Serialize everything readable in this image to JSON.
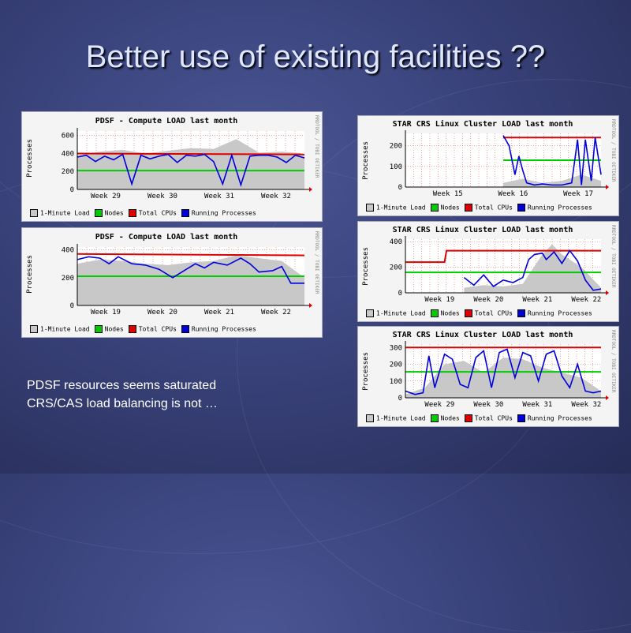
{
  "slide": {
    "title": "Better use of existing facilities ??",
    "caption": [
      "PDSF resources seems saturated",
      "CRS/CAS load balancing is not …"
    ]
  },
  "legend_labels": [
    "1-Minute Load",
    "Nodes",
    "Total CPUs",
    "Running Processes"
  ],
  "colors": {
    "load": "#c8c8c8",
    "nodes": "#00cc00",
    "cpus": "#dd0000",
    "procs": "#0000dd"
  },
  "side_label": "RRDTOOL / TOBI OETIKER",
  "chart_data": [
    {
      "id": "pdsf-a",
      "type": "line",
      "title": "PDSF - Compute LOAD last month",
      "ylabel": "Processes",
      "ylim": [
        0,
        650
      ],
      "yticks": [
        "0",
        "200",
        "400",
        "600"
      ],
      "ytick_values": [
        0,
        200,
        400,
        600
      ],
      "xticks": [
        "Week 29",
        "Week 30",
        "Week 31",
        "Week 32"
      ],
      "xlim": [
        0,
        1
      ],
      "series": [
        {
          "name": "Nodes",
          "x": [
            0,
            1
          ],
          "y": [
            210,
            210
          ]
        },
        {
          "name": "Total CPUs",
          "x": [
            0,
            1
          ],
          "y": [
            400,
            390
          ]
        },
        {
          "name": "Running Processes",
          "x": [
            0,
            0.04,
            0.08,
            0.12,
            0.16,
            0.2,
            0.24,
            0.28,
            0.32,
            0.36,
            0.4,
            0.44,
            0.48,
            0.52,
            0.56,
            0.6,
            0.64,
            0.68,
            0.72,
            0.76,
            0.8,
            0.84,
            0.88,
            0.92,
            0.96,
            1
          ],
          "y": [
            360,
            380,
            310,
            370,
            330,
            390,
            60,
            380,
            340,
            370,
            390,
            300,
            380,
            370,
            390,
            310,
            60,
            380,
            50,
            370,
            380,
            380,
            360,
            300,
            380,
            350
          ]
        },
        {
          "name": "1-Minute Load",
          "x": [
            0,
            0.1,
            0.2,
            0.3,
            0.4,
            0.5,
            0.6,
            0.7,
            0.8,
            0.9,
            1
          ],
          "y": [
            380,
            420,
            440,
            400,
            430,
            460,
            450,
            560,
            410,
            420,
            400
          ]
        }
      ]
    },
    {
      "id": "pdsf-b",
      "type": "line",
      "title": "PDSF - Compute LOAD last month",
      "ylabel": "Processes",
      "ylim": [
        0,
        420
      ],
      "yticks": [
        "0",
        "200",
        "400"
      ],
      "ytick_values": [
        0,
        200,
        400
      ],
      "xticks": [
        "Week 19",
        "Week 20",
        "Week 21",
        "Week 22"
      ],
      "xlim": [
        0,
        1
      ],
      "series": [
        {
          "name": "Nodes",
          "x": [
            0,
            1
          ],
          "y": [
            210,
            210
          ]
        },
        {
          "name": "Total CPUs",
          "x": [
            0,
            1
          ],
          "y": [
            370,
            360
          ]
        },
        {
          "name": "Running Processes",
          "x": [
            0,
            0.05,
            0.1,
            0.14,
            0.18,
            0.24,
            0.3,
            0.36,
            0.42,
            0.48,
            0.52,
            0.56,
            0.6,
            0.66,
            0.72,
            0.76,
            0.8,
            0.86,
            0.9,
            0.94,
            0.97,
            1
          ],
          "y": [
            330,
            350,
            340,
            300,
            350,
            300,
            290,
            260,
            200,
            260,
            300,
            270,
            310,
            290,
            340,
            300,
            240,
            250,
            280,
            160,
            160,
            160
          ]
        },
        {
          "name": "1-Minute Load",
          "x": [
            0,
            0.1,
            0.2,
            0.3,
            0.4,
            0.5,
            0.6,
            0.7,
            0.8,
            0.9,
            1
          ],
          "y": [
            300,
            330,
            320,
            300,
            290,
            310,
            320,
            360,
            340,
            320,
            200
          ]
        }
      ]
    },
    {
      "id": "star-a",
      "type": "line",
      "title": "STAR CRS Linux Cluster LOAD last month",
      "ylabel": "Processes",
      "ylim": [
        0,
        260
      ],
      "yticks": [
        "0",
        "100",
        "200"
      ],
      "ytick_values": [
        0,
        100,
        200
      ],
      "xticks": [
        "Week 15",
        "Week 16",
        "Week 17"
      ],
      "xlim": [
        0,
        1
      ],
      "series": [
        {
          "name": "Nodes",
          "x": [
            0.5,
            1
          ],
          "y": [
            130,
            130
          ]
        },
        {
          "name": "Total CPUs",
          "x": [
            0.5,
            1
          ],
          "y": [
            240,
            240
          ]
        },
        {
          "name": "Running Processes",
          "x": [
            0.5,
            0.53,
            0.56,
            0.58,
            0.6,
            0.62,
            0.66,
            0.7,
            0.75,
            0.8,
            0.85,
            0.88,
            0.9,
            0.92,
            0.95,
            0.97,
            1
          ],
          "y": [
            250,
            200,
            60,
            150,
            80,
            20,
            10,
            15,
            10,
            10,
            20,
            230,
            10,
            230,
            30,
            240,
            60
          ]
        },
        {
          "name": "1-Minute Load",
          "x": [
            0.5,
            0.6,
            0.7,
            0.8,
            0.9,
            1
          ],
          "y": [
            20,
            40,
            20,
            30,
            60,
            30
          ]
        }
      ]
    },
    {
      "id": "star-b",
      "type": "line",
      "title": "STAR CRS Linux Cluster LOAD last month",
      "ylabel": "Processes",
      "ylim": [
        0,
        420
      ],
      "yticks": [
        "0",
        "200",
        "400"
      ],
      "ytick_values": [
        0,
        200,
        400
      ],
      "xticks": [
        "Week 19",
        "Week 20",
        "Week 21",
        "Week 22"
      ],
      "xlim": [
        0,
        1
      ],
      "series": [
        {
          "name": "Nodes",
          "x": [
            0,
            1
          ],
          "y": [
            160,
            160
          ]
        },
        {
          "name": "Total CPUs",
          "x": [
            0,
            0.2,
            0.21,
            1
          ],
          "y": [
            240,
            240,
            330,
            330
          ]
        },
        {
          "name": "Running Processes",
          "x": [
            0.3,
            0.35,
            0.4,
            0.45,
            0.5,
            0.55,
            0.6,
            0.63,
            0.66,
            0.7,
            0.72,
            0.76,
            0.8,
            0.84,
            0.88,
            0.92,
            0.96,
            1
          ],
          "y": [
            120,
            60,
            140,
            50,
            100,
            80,
            120,
            260,
            300,
            310,
            260,
            320,
            230,
            330,
            250,
            100,
            20,
            30
          ]
        },
        {
          "name": "1-Minute Load",
          "x": [
            0.3,
            0.4,
            0.5,
            0.6,
            0.7,
            0.75,
            0.8,
            0.9,
            1
          ],
          "y": [
            40,
            60,
            50,
            70,
            300,
            380,
            300,
            200,
            40
          ]
        }
      ]
    },
    {
      "id": "star-c",
      "type": "line",
      "title": "STAR CRS Linux Cluster LOAD last month",
      "ylabel": "Processes",
      "ylim": [
        0,
        320
      ],
      "yticks": [
        "0",
        "100",
        "200",
        "300"
      ],
      "ytick_values": [
        0,
        100,
        200,
        300
      ],
      "xticks": [
        "Week 29",
        "Week 30",
        "Week 31",
        "Week 32"
      ],
      "xlim": [
        0,
        1
      ],
      "series": [
        {
          "name": "Nodes",
          "x": [
            0,
            1
          ],
          "y": [
            155,
            155
          ]
        },
        {
          "name": "Total CPUs",
          "x": [
            0,
            1
          ],
          "y": [
            300,
            300
          ]
        },
        {
          "name": "Running Processes",
          "x": [
            0,
            0.05,
            0.09,
            0.12,
            0.15,
            0.2,
            0.24,
            0.28,
            0.32,
            0.36,
            0.4,
            0.44,
            0.48,
            0.52,
            0.56,
            0.6,
            0.64,
            0.68,
            0.72,
            0.76,
            0.8,
            0.84,
            0.88,
            0.92,
            0.96,
            1
          ],
          "y": [
            40,
            20,
            30,
            250,
            60,
            260,
            230,
            80,
            60,
            240,
            280,
            60,
            270,
            290,
            120,
            270,
            250,
            100,
            260,
            280,
            130,
            60,
            200,
            40,
            30,
            40
          ]
        },
        {
          "name": "1-Minute Load",
          "x": [
            0,
            0.1,
            0.2,
            0.3,
            0.4,
            0.5,
            0.6,
            0.7,
            0.8,
            0.9,
            1
          ],
          "y": [
            20,
            60,
            200,
            220,
            150,
            240,
            230,
            180,
            150,
            120,
            40
          ]
        }
      ]
    }
  ]
}
